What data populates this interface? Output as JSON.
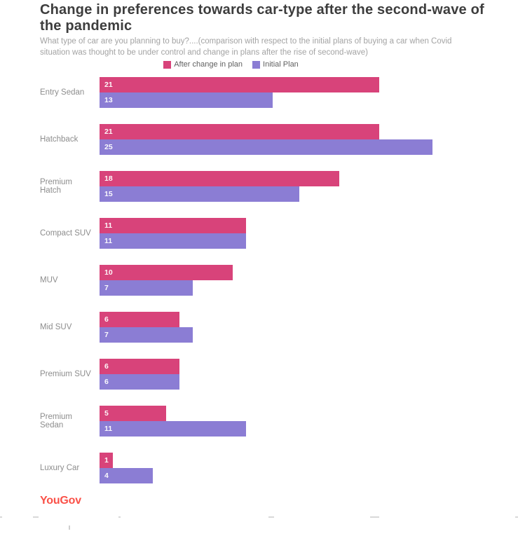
{
  "header": {
    "title": "Change in preferences towards car-type after the second-wave of the pandemic",
    "subtitle": "What type of car are you planning to buy?....(comparison with respect to the initial plans of buying a car when Covid situation was thought to be under control and change in plans after the rise of second-wave)"
  },
  "legend": {
    "items": [
      {
        "label": "After change in plan",
        "color": "#d8437a"
      },
      {
        "label": "Initial Plan",
        "color": "#8b7dd4"
      }
    ]
  },
  "chart_data": {
    "type": "bar",
    "orientation": "horizontal",
    "title": "Change in preferences towards car-type after the second-wave of the pandemic",
    "categories": [
      "Entry Sedan",
      "Hatchback",
      "Premium Hatch",
      "Compact SUV",
      "MUV",
      "Mid SUV",
      "Premium SUV",
      "Premium Sedan",
      "Luxury Car"
    ],
    "series": [
      {
        "name": "After change in plan",
        "color": "#d8437a",
        "values": [
          21,
          21,
          18,
          11,
          10,
          6,
          6,
          5,
          1
        ]
      },
      {
        "name": "Initial Plan",
        "color": "#8b7dd4",
        "values": [
          13,
          25,
          15,
          11,
          7,
          7,
          6,
          11,
          4
        ]
      }
    ],
    "value_labels": "inside-start",
    "xlim": [
      0,
      31.4
    ],
    "grid": false,
    "legend_position": "top-center"
  },
  "footer": {
    "brand": "YouGov",
    "brand_color": "#fa5148"
  }
}
